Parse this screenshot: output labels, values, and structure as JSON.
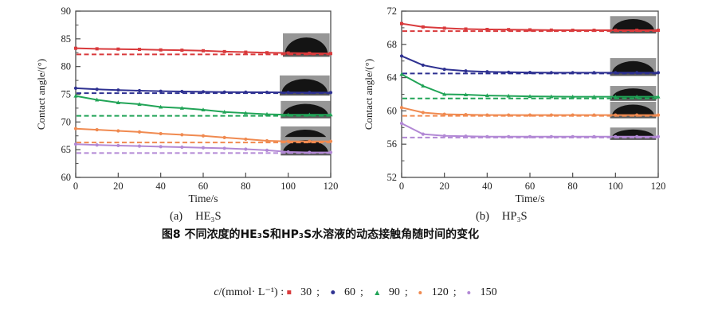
{
  "figure": {
    "caption_a_prefix": "(a)",
    "caption_a_label": "HE₃S",
    "caption_b_prefix": "(b)",
    "caption_b_label": "HP₃S",
    "title": "图8  不同浓度的HE₃S和HP₃S水溶液的动态接触角随时间的变化"
  },
  "legend": {
    "prefix_italic": "c",
    "prefix_rest": "/(mmol· L⁻¹) :",
    "separator": ";",
    "position": "bottom-center",
    "items": [
      {
        "label": "30",
        "color": "#d93a3c",
        "marker": "square"
      },
      {
        "label": "60",
        "color": "#2e3191",
        "marker": "circle"
      },
      {
        "label": "90",
        "color": "#21a457",
        "marker": "triangle"
      },
      {
        "label": "120",
        "color": "#f08a50",
        "marker": "dot"
      },
      {
        "label": "150",
        "color": "#b288d5",
        "marker": "dot"
      }
    ]
  },
  "chart_data": [
    {
      "type": "line",
      "name": "HE3S",
      "xlabel": "Time/s",
      "ylabel": "Contact angle/(°)",
      "xlim": [
        0,
        120
      ],
      "xticks": [
        0,
        20,
        40,
        60,
        80,
        100,
        120
      ],
      "ylim": [
        60,
        90
      ],
      "yticks": [
        60,
        65,
        70,
        75,
        80,
        85,
        90
      ],
      "yminor_step": 2.5,
      "grid": false,
      "x": [
        0,
        10,
        20,
        30,
        40,
        50,
        60,
        70,
        80,
        90,
        100,
        110,
        120
      ],
      "series": [
        {
          "name": "30",
          "color": "#d93a3c",
          "marker": "square",
          "values": [
            83.3,
            83.2,
            83.15,
            83.1,
            83.0,
            82.95,
            82.85,
            82.7,
            82.6,
            82.5,
            82.45,
            82.4,
            82.35
          ],
          "equilibrium_dashed": 82.2
        },
        {
          "name": "60",
          "color": "#2e3191",
          "marker": "circle",
          "values": [
            76.1,
            75.9,
            75.75,
            75.65,
            75.55,
            75.5,
            75.45,
            75.4,
            75.38,
            75.35,
            75.32,
            75.3,
            75.3
          ],
          "equilibrium_dashed": 75.2
        },
        {
          "name": "90",
          "color": "#21a457",
          "marker": "triangle",
          "values": [
            74.7,
            74.0,
            73.5,
            73.2,
            72.7,
            72.5,
            72.2,
            71.8,
            71.6,
            71.4,
            71.3,
            71.3,
            71.3
          ],
          "equilibrium_dashed": 71.1
        },
        {
          "name": "120",
          "color": "#f08a50",
          "marker": "dot",
          "values": [
            68.8,
            68.6,
            68.4,
            68.2,
            67.9,
            67.7,
            67.5,
            67.2,
            66.9,
            66.6,
            66.5,
            66.5,
            66.5
          ],
          "equilibrium_dashed": 66.3
        },
        {
          "name": "150",
          "color": "#b288d5",
          "marker": "dot",
          "values": [
            66.0,
            65.85,
            65.75,
            65.65,
            65.55,
            65.45,
            65.35,
            65.25,
            65.1,
            64.9,
            64.6,
            64.5,
            64.5
          ],
          "equilibrium_dashed": 64.4
        }
      ],
      "insets": [
        {
          "x0": 97.5,
          "x1": 119.5,
          "y_top": 86.0,
          "y_base": 82.2
        },
        {
          "x0": 96.0,
          "x1": 119.5,
          "y_top": 78.4,
          "y_base": 75.2
        },
        {
          "x0": 96.5,
          "x1": 119.8,
          "y_top": 73.8,
          "y_base": 71.1
        },
        {
          "x0": 96.5,
          "x1": 119.8,
          "y_top": 69.2,
          "y_base": 66.3
        },
        {
          "x0": 96.5,
          "x1": 119.8,
          "y_top": 67.3,
          "y_base": 64.4
        }
      ]
    },
    {
      "type": "line",
      "name": "HP3S",
      "xlabel": "Time/s",
      "ylabel": "Contact angle/(°)",
      "xlim": [
        0,
        120
      ],
      "xticks": [
        0,
        20,
        40,
        60,
        80,
        100,
        120
      ],
      "ylim": [
        52,
        72
      ],
      "yticks": [
        52,
        56,
        60,
        64,
        68,
        72
      ],
      "yminor_step": 2,
      "grid": false,
      "x": [
        0,
        10,
        20,
        30,
        40,
        50,
        60,
        70,
        80,
        90,
        100,
        110,
        120
      ],
      "series": [
        {
          "name": "30",
          "color": "#d93a3c",
          "marker": "square",
          "values": [
            70.5,
            70.1,
            69.95,
            69.85,
            69.8,
            69.78,
            69.75,
            69.72,
            69.7,
            69.7,
            69.7,
            69.7,
            69.7
          ],
          "equilibrium_dashed": 69.6
        },
        {
          "name": "60",
          "color": "#2e3191",
          "marker": "circle",
          "values": [
            66.6,
            65.5,
            65.0,
            64.8,
            64.7,
            64.65,
            64.62,
            64.6,
            64.6,
            64.6,
            64.6,
            64.6,
            64.6
          ],
          "equilibrium_dashed": 64.5
        },
        {
          "name": "90",
          "color": "#21a457",
          "marker": "triangle",
          "values": [
            64.4,
            63.0,
            62.0,
            61.95,
            61.85,
            61.8,
            61.75,
            61.72,
            61.7,
            61.7,
            61.7,
            61.7,
            61.7
          ],
          "equilibrium_dashed": 61.5
        },
        {
          "name": "120",
          "color": "#f08a50",
          "marker": "dot",
          "values": [
            60.4,
            59.8,
            59.6,
            59.55,
            59.5,
            59.5,
            59.5,
            59.5,
            59.5,
            59.5,
            59.5,
            59.5,
            59.5
          ],
          "equilibrium_dashed": 59.4
        },
        {
          "name": "150",
          "color": "#b288d5",
          "marker": "dot",
          "values": [
            58.5,
            57.2,
            57.0,
            56.95,
            56.9,
            56.9,
            56.9,
            56.9,
            56.9,
            56.9,
            56.9,
            56.9,
            56.9
          ],
          "equilibrium_dashed": 56.8
        }
      ],
      "insets": [
        {
          "x0": 97.5,
          "x1": 119.0,
          "y_top": 71.4,
          "y_base": 69.6
        },
        {
          "x0": 97.5,
          "x1": 119.0,
          "y_top": 66.35,
          "y_base": 64.5
        },
        {
          "x0": 97.5,
          "x1": 119.0,
          "y_top": 63.0,
          "y_base": 61.5
        },
        {
          "x0": 97.5,
          "x1": 119.0,
          "y_top": 61.1,
          "y_base": 59.4
        },
        {
          "x0": 97.5,
          "x1": 119.0,
          "y_top": 58.0,
          "y_base": 56.8
        }
      ]
    }
  ],
  "inset_style": {
    "photo_bg": "#969696",
    "droplet_color": "#141414",
    "semantic": "sessile-droplet-photo"
  }
}
